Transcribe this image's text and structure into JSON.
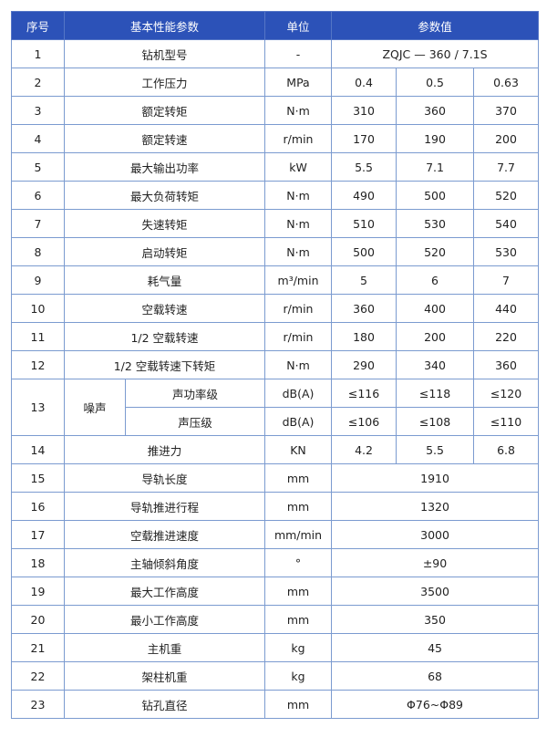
{
  "header": {
    "seq": "序号",
    "param": "基本性能参数",
    "unit": "单位",
    "value": "参数值"
  },
  "rows": [
    {
      "seq": "1",
      "param": "钻机型号",
      "unit": "-",
      "value": "ZQJC — 360 / 7.1S"
    },
    {
      "seq": "2",
      "param": "工作压力",
      "unit": "MPa",
      "values": [
        "0.4",
        "0.5",
        "0.63"
      ]
    },
    {
      "seq": "3",
      "param": "额定转矩",
      "unit": "N·m",
      "values": [
        "310",
        "360",
        "370"
      ]
    },
    {
      "seq": "4",
      "param": "额定转速",
      "unit": "r/min",
      "values": [
        "170",
        "190",
        "200"
      ]
    },
    {
      "seq": "5",
      "param": "最大输出功率",
      "unit": "kW",
      "values": [
        "5.5",
        "7.1",
        "7.7"
      ]
    },
    {
      "seq": "6",
      "param": "最大负荷转矩",
      "unit": "N·m",
      "values": [
        "490",
        "500",
        "520"
      ]
    },
    {
      "seq": "7",
      "param": "失速转矩",
      "unit": "N·m",
      "values": [
        "510",
        "530",
        "540"
      ]
    },
    {
      "seq": "8",
      "param": "启动转矩",
      "unit": "N·m",
      "values": [
        "500",
        "520",
        "530"
      ]
    },
    {
      "seq": "9",
      "param": "耗气量",
      "unit": "m³/min",
      "values": [
        "5",
        "6",
        "7"
      ]
    },
    {
      "seq": "10",
      "param": "空载转速",
      "unit": "r/min",
      "values": [
        "360",
        "400",
        "440"
      ]
    },
    {
      "seq": "11",
      "param": "1/2 空载转速",
      "unit": "r/min",
      "values": [
        "180",
        "200",
        "220"
      ]
    },
    {
      "seq": "12",
      "param": "1/2 空载转速下转矩",
      "unit": "N·m",
      "values": [
        "290",
        "340",
        "360"
      ]
    },
    {
      "seq": "13",
      "param": "噪声",
      "sub": [
        {
          "param": "声功率级",
          "unit": "dB(A)",
          "values": [
            "≤116",
            "≤118",
            "≤120"
          ]
        },
        {
          "param": "声压级",
          "unit": "dB(A)",
          "values": [
            "≤106",
            "≤108",
            "≤110"
          ]
        }
      ]
    },
    {
      "seq": "14",
      "param": "推进力",
      "unit": "KN",
      "values": [
        "4.2",
        "5.5",
        "6.8"
      ]
    },
    {
      "seq": "15",
      "param": "导轨长度",
      "unit": "mm",
      "value": "1910"
    },
    {
      "seq": "16",
      "param": "导轨推进行程",
      "unit": "mm",
      "value": "1320"
    },
    {
      "seq": "17",
      "param": "空载推进速度",
      "unit": "mm/min",
      "value": "3000"
    },
    {
      "seq": "18",
      "param": "主轴倾斜角度",
      "unit": "°",
      "value": "±90"
    },
    {
      "seq": "19",
      "param": "最大工作高度",
      "unit": "mm",
      "value": "3500"
    },
    {
      "seq": "20",
      "param": "最小工作高度",
      "unit": "mm",
      "value": "350"
    },
    {
      "seq": "21",
      "param": "主机重",
      "unit": "kg",
      "value": "45"
    },
    {
      "seq": "22",
      "param": "架柱机重",
      "unit": "kg",
      "value": "68"
    },
    {
      "seq": "23",
      "param": "钻孔直径",
      "unit": "mm",
      "value": "Φ76~Φ89"
    }
  ]
}
